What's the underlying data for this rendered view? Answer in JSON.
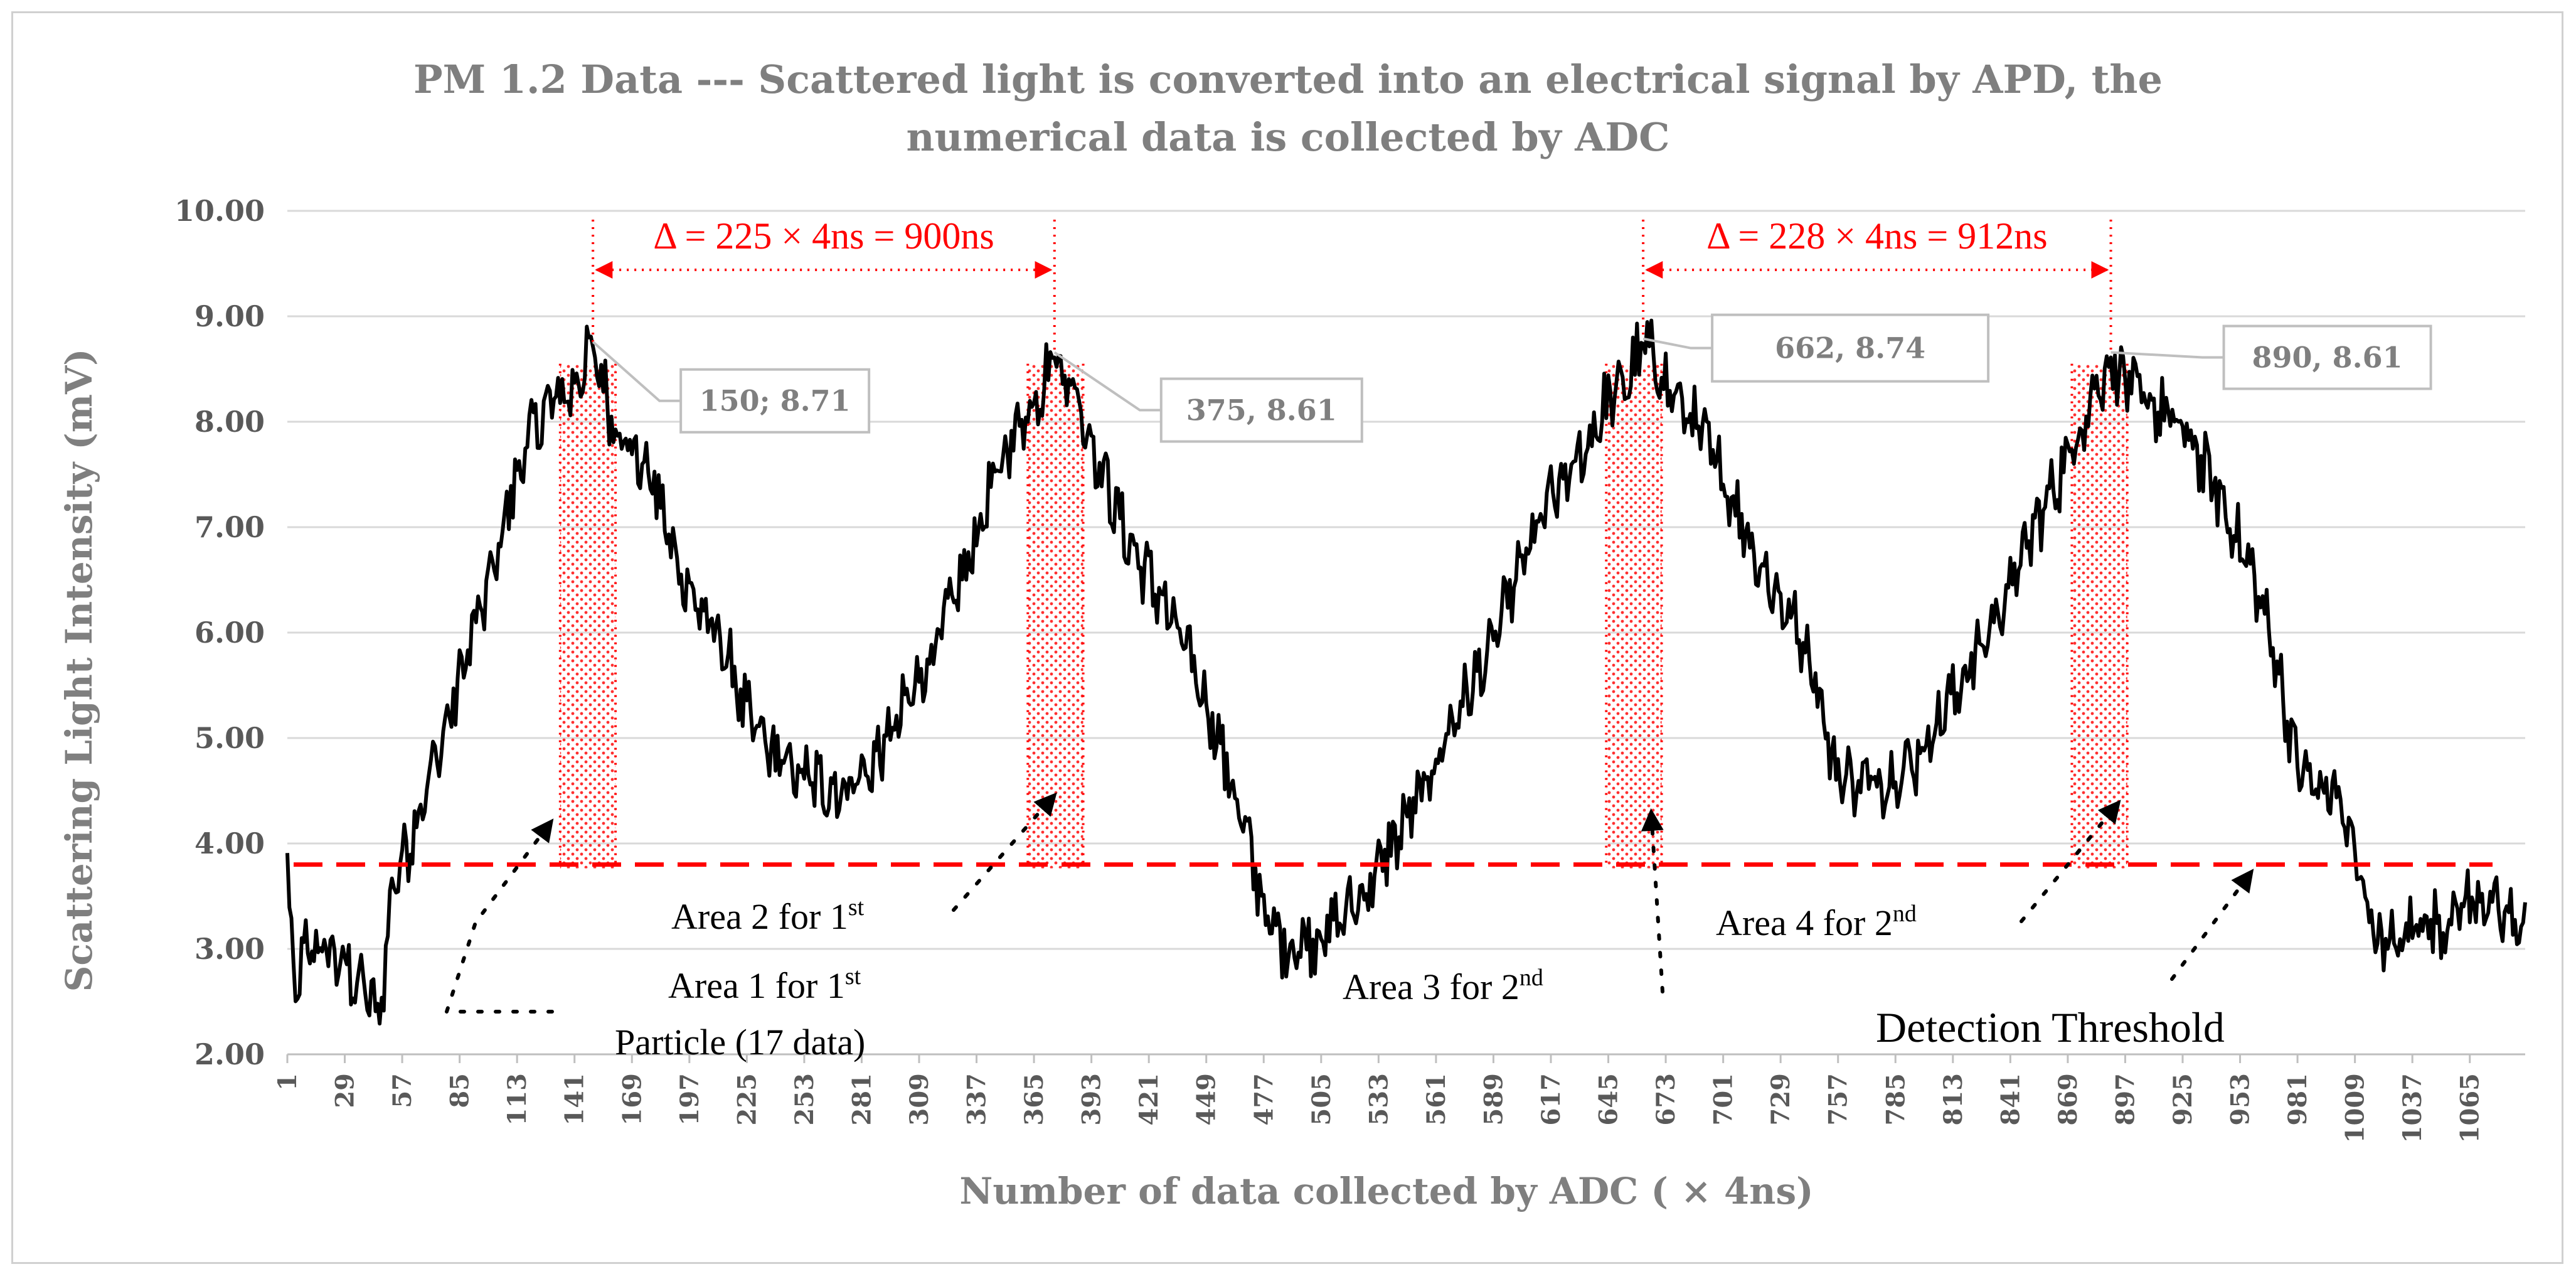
{
  "chart_data": {
    "type": "line",
    "title": [
      "PM 1.2  Data --- Scattered light is converted into an electrical signal by APD, the",
      "numerical data is collected by ADC"
    ],
    "xlabel": "Number of data collected by ADC ( × 4ns)",
    "ylabel": "Scattering Light  Intensity (mV)",
    "ylim": [
      2,
      10
    ],
    "yticks": [
      "2.00",
      "3.00",
      "4.00",
      "5.00",
      "6.00",
      "7.00",
      "8.00",
      "9.00",
      "10.00"
    ],
    "xlim": [
      1,
      1092
    ],
    "xticks": [
      "1",
      "29",
      "57",
      "85",
      "113",
      "141",
      "169",
      "197",
      "225",
      "253",
      "281",
      "309",
      "337",
      "365",
      "393",
      "421",
      "449",
      "477",
      "505",
      "533",
      "561",
      "589",
      "617",
      "645",
      "673",
      "701",
      "729",
      "757",
      "785",
      "813",
      "841",
      "869",
      "897",
      "925",
      "953",
      "981",
      "1009",
      "1037",
      "1065"
    ],
    "grid": true,
    "threshold": 3.8,
    "threshold_color": "#ff0000",
    "line_color": "#000000",
    "series_anchors": [
      [
        1,
        3.7
      ],
      [
        5,
        2.5
      ],
      [
        10,
        3.0
      ],
      [
        20,
        3.0
      ],
      [
        30,
        2.8
      ],
      [
        40,
        2.6
      ],
      [
        46,
        2.3
      ],
      [
        52,
        3.6
      ],
      [
        60,
        4.0
      ],
      [
        70,
        4.6
      ],
      [
        80,
        5.2
      ],
      [
        90,
        5.9
      ],
      [
        100,
        6.5
      ],
      [
        110,
        7.3
      ],
      [
        120,
        7.9
      ],
      [
        130,
        8.2
      ],
      [
        140,
        8.3
      ],
      [
        150,
        8.71
      ],
      [
        160,
        8.0
      ],
      [
        170,
        7.7
      ],
      [
        180,
        7.4
      ],
      [
        190,
        6.7
      ],
      [
        200,
        6.3
      ],
      [
        215,
        5.8
      ],
      [
        225,
        5.2
      ],
      [
        240,
        4.8
      ],
      [
        255,
        4.6
      ],
      [
        270,
        4.5
      ],
      [
        285,
        4.7
      ],
      [
        300,
        5.2
      ],
      [
        315,
        5.8
      ],
      [
        330,
        6.5
      ],
      [
        345,
        7.4
      ],
      [
        355,
        7.9
      ],
      [
        365,
        8.2
      ],
      [
        375,
        8.61
      ],
      [
        385,
        8.3
      ],
      [
        395,
        7.7
      ],
      [
        410,
        6.9
      ],
      [
        425,
        6.4
      ],
      [
        440,
        5.8
      ],
      [
        455,
        5.0
      ],
      [
        468,
        4.1
      ],
      [
        480,
        3.2
      ],
      [
        490,
        3.0
      ],
      [
        500,
        3.1
      ],
      [
        510,
        3.2
      ],
      [
        525,
        3.5
      ],
      [
        540,
        4.0
      ],
      [
        555,
        4.5
      ],
      [
        570,
        5.2
      ],
      [
        585,
        5.7
      ],
      [
        600,
        6.5
      ],
      [
        615,
        7.2
      ],
      [
        630,
        7.6
      ],
      [
        645,
        8.2
      ],
      [
        655,
        8.4
      ],
      [
        662,
        8.74
      ],
      [
        675,
        8.3
      ],
      [
        690,
        7.9
      ],
      [
        705,
        7.3
      ],
      [
        720,
        6.6
      ],
      [
        735,
        6.1
      ],
      [
        745,
        5.7
      ],
      [
        755,
        4.7
      ],
      [
        765,
        4.6
      ],
      [
        780,
        4.6
      ],
      [
        795,
        4.8
      ],
      [
        810,
        5.3
      ],
      [
        825,
        5.8
      ],
      [
        840,
        6.4
      ],
      [
        855,
        7.1
      ],
      [
        870,
        7.7
      ],
      [
        880,
        8.2
      ],
      [
        890,
        8.61
      ],
      [
        900,
        8.3
      ],
      [
        915,
        8.1
      ],
      [
        930,
        7.8
      ],
      [
        945,
        7.2
      ],
      [
        960,
        6.5
      ],
      [
        970,
        5.8
      ],
      [
        980,
        4.8
      ],
      [
        990,
        4.5
      ],
      [
        1000,
        4.5
      ],
      [
        1010,
        3.8
      ],
      [
        1020,
        3.1
      ],
      [
        1030,
        3.0
      ],
      [
        1040,
        3.3
      ],
      [
        1050,
        3.2
      ],
      [
        1060,
        3.4
      ],
      [
        1070,
        3.5
      ],
      [
        1080,
        3.3
      ],
      [
        1092,
        3.2
      ]
    ],
    "peaks": [
      {
        "x": 150,
        "y": 8.71,
        "label": "150; 8.71"
      },
      {
        "x": 375,
        "y": 8.61,
        "label": "375,  8.61"
      },
      {
        "x": 662,
        "y": 8.74,
        "label": "662,  8.74"
      },
      {
        "x": 890,
        "y": 8.61,
        "label": "890,  8.61"
      }
    ],
    "deltas": [
      {
        "from": 150,
        "to": 375,
        "label": "Δ = 225 × 4ns = 900ns"
      },
      {
        "from": 662,
        "to": 890,
        "label": "Δ = 228 × 4ns = 912ns"
      }
    ],
    "areas": [
      {
        "from": 134,
        "to": 161
      },
      {
        "from": 362,
        "to": 389
      },
      {
        "from": 644,
        "to": 671
      },
      {
        "from": 871,
        "to": 898
      }
    ],
    "annotations": [
      {
        "text": "Area 1 for 1",
        "sup": "st"
      },
      {
        "text": "Particle   (17 data)"
      },
      {
        "text": "Area 2 for 1",
        "sup": "st"
      },
      {
        "text": "Area 3 for 2",
        "sup": "nd"
      },
      {
        "text": "Area 4 for 2",
        "sup": "nd"
      },
      {
        "text": "Detection Threshold"
      }
    ]
  }
}
